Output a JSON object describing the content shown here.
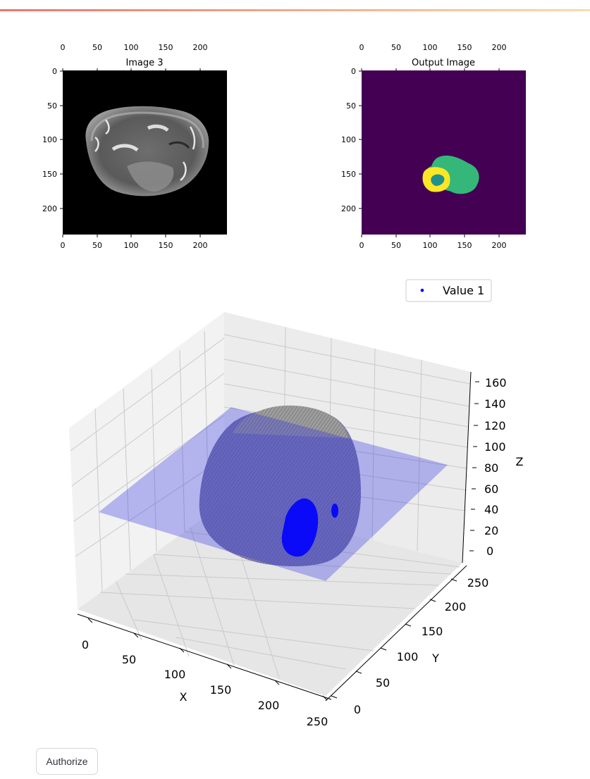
{
  "theme": {
    "topbar_start": "#f0746c",
    "topbar_end": "#f7dcb0",
    "axis_blue_plane": "#2e2ee6",
    "tumor_blue": "#0000ff"
  },
  "image_panel": {
    "title": "Image 3",
    "x_ticks": [
      "0",
      "50",
      "100",
      "150",
      "200"
    ],
    "y_ticks": [
      "0",
      "50",
      "100",
      "150",
      "200"
    ]
  },
  "output_panel": {
    "title": "Output Image",
    "x_ticks": [
      "0",
      "50",
      "100",
      "150",
      "200"
    ],
    "y_ticks": [
      "0",
      "50",
      "100",
      "150",
      "200"
    ],
    "colors": {
      "background": "#440154",
      "edema": "#35b779",
      "core": "#fde725",
      "enhancing": "#21918c"
    }
  },
  "legend": {
    "marker": "•",
    "label": "Value 1",
    "marker_color": "#0000ff"
  },
  "plot3d": {
    "xlabel": "X",
    "ylabel": "Y",
    "zlabel": "Z",
    "x_ticks": [
      "0",
      "50",
      "100",
      "150",
      "200",
      "250"
    ],
    "y_ticks": [
      "0",
      "50",
      "100",
      "150",
      "200",
      "250"
    ],
    "z_ticks": [
      "0",
      "20",
      "40",
      "60",
      "80",
      "100",
      "120",
      "140",
      "160"
    ]
  },
  "authorize_label": "Authorize"
}
